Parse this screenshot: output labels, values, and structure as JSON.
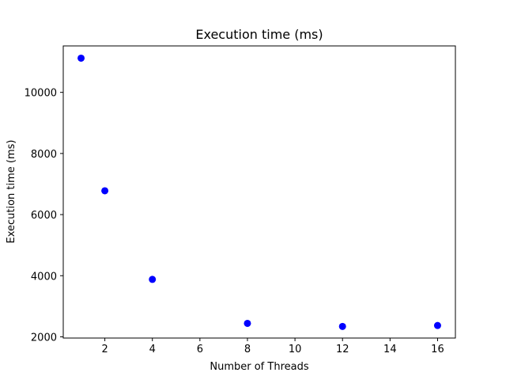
{
  "chart_data": {
    "type": "scatter",
    "title": "Execution time (ms)",
    "xlabel": "Number of Threads",
    "ylabel": "Execution time (ms)",
    "x": [
      1,
      2,
      4,
      8,
      12,
      16
    ],
    "y": [
      11120,
      6780,
      3880,
      2440,
      2340,
      2370
    ],
    "xlim": [
      0.25,
      16.75
    ],
    "ylim": [
      1960,
      11520
    ],
    "xticks": [
      2,
      4,
      6,
      8,
      10,
      12,
      14,
      16
    ],
    "yticks": [
      2000,
      4000,
      6000,
      8000,
      10000
    ],
    "grid": false,
    "marker_color": "#0000ff"
  }
}
